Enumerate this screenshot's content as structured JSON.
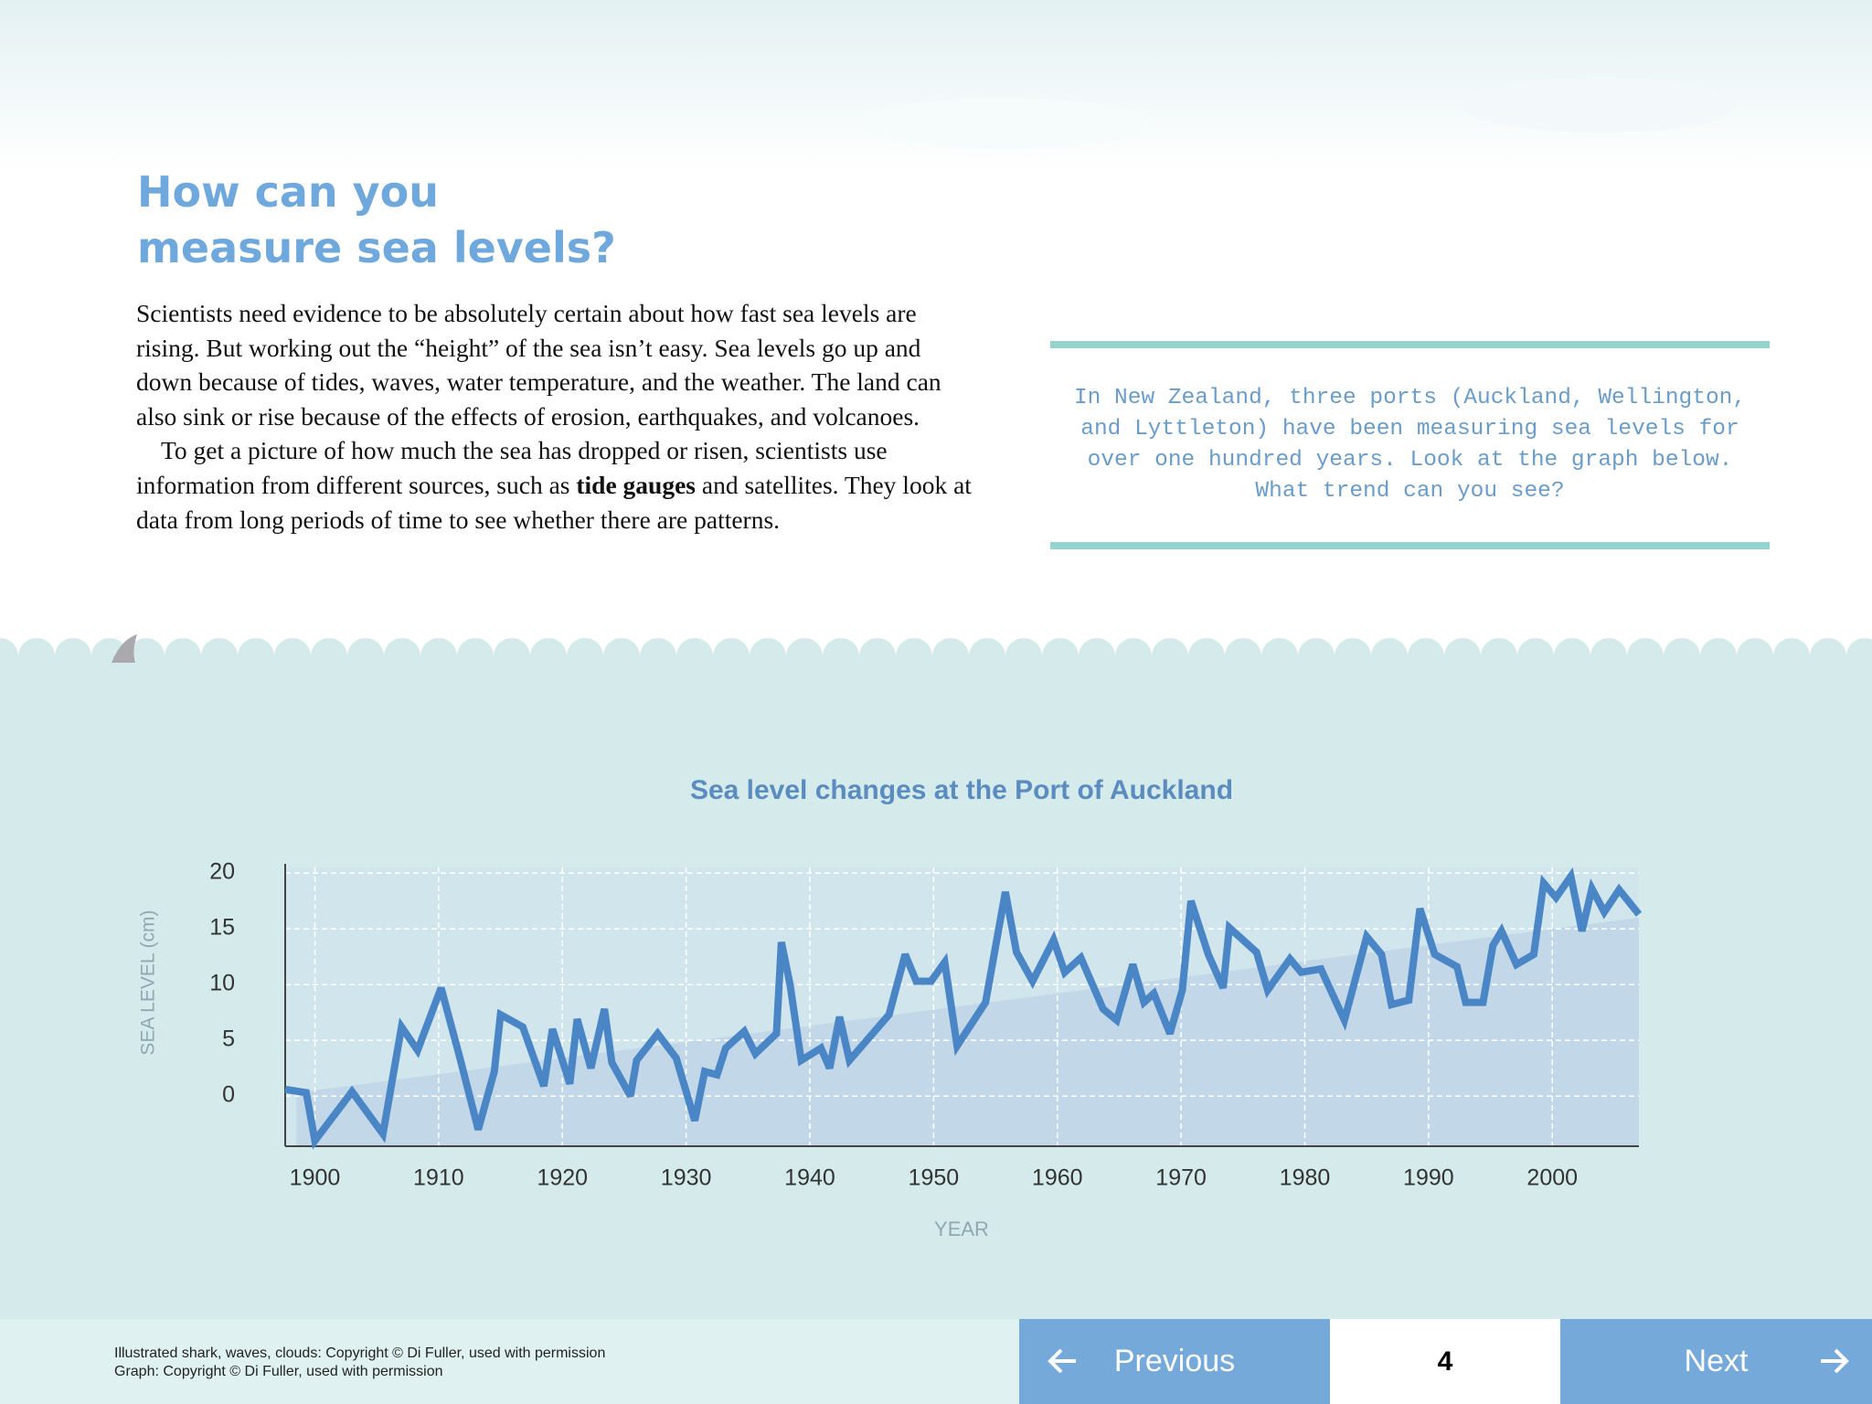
{
  "header": {
    "title_lines": [
      "How can you",
      "measure sea levels?"
    ]
  },
  "body": {
    "paragraphs": [
      [
        "Scientists need evidence to be absolutely certain about how fast sea levels are rising. But working out the “height” of the sea isn’t easy. Sea levels go up and down because of tides, waves, water temperature, and the weather. The land can also sink or rise because of the effects of erosion, earthquakes, and volcanoes."
      ],
      [
        "To get a picture of how much the sea has dropped or risen, scientists use information from different sources, such as ",
        "tide gauges",
        " and satellites. They look at data from long periods of time to see whether there are patterns."
      ]
    ]
  },
  "callout": {
    "lines": [
      "In New Zealand, three ports (Auckland, Wellington,",
      "and Lyttleton) have been measuring sea levels for",
      "over one hundred years. Look at the graph below.",
      "What trend can you see?"
    ]
  },
  "chart_data": {
    "type": "line",
    "title": "Sea level changes at the Port of Auckland",
    "xlabel": "YEAR",
    "ylabel": "SEA LEVEL (cm)",
    "x": [
      1897.6,
      1899.3,
      1900,
      1903,
      1905.5,
      1907,
      1908.3,
      1910.2,
      1911.7,
      1913.2,
      1914.5,
      1915,
      1916.8,
      1918.5,
      1919.2,
      1920.6,
      1921.2,
      1922.3,
      1923.4,
      1924,
      1925.5,
      1926,
      1927.7,
      1929.2,
      1930.7,
      1931.5,
      1932.5,
      1933.2,
      1934.7,
      1935.6,
      1937.3,
      1937.7,
      1938.4,
      1939.3,
      1940.9,
      1941.6,
      1942.4,
      1943.2,
      1946.4,
      1947.7,
      1948.6,
      1949.8,
      1950.9,
      1951.9,
      1954.2,
      1955.8,
      1956.7,
      1958,
      1959.7,
      1960.6,
      1961.9,
      1963.7,
      1964.8,
      1966.1,
      1967,
      1967.8,
      1969.1,
      1970.1,
      1970.8,
      1972.2,
      1973.4,
      1973.9,
      1976.1,
      1977,
      1978.8,
      1979.7,
      1981.3,
      1983.2,
      1985,
      1986.2,
      1987,
      1988.4,
      1989.3,
      1990.5,
      1992.3,
      1993,
      1994.4,
      1995.2,
      1995.9,
      1997.1,
      1998.5,
      1999.3,
      2000.3,
      2001.5,
      2002.4,
      2003.2,
      2004.2,
      2005.4,
      2007
    ],
    "series": [
      {
        "color": "#4a86c5",
        "values": [
          0.6,
          0.3,
          -4,
          0.4,
          -3.4,
          6.2,
          4.1,
          9.7,
          3.5,
          -3,
          2.2,
          7.3,
          6.2,
          0.9,
          6,
          1.1,
          6.9,
          2.5,
          7.8,
          3,
          0,
          3.2,
          5.6,
          3.4,
          -2.2,
          2.2,
          1.9,
          4.3,
          5.8,
          3.8,
          5.6,
          13.8,
          10,
          3.2,
          4.3,
          2.5,
          7.1,
          3.2,
          7.3,
          12.7,
          10.3,
          10.3,
          12,
          4.5,
          8.4,
          18.3,
          12.9,
          10.3,
          14,
          11.1,
          12.4,
          7.8,
          6.8,
          11.8,
          8.4,
          9.2,
          5.6,
          9.5,
          17.5,
          12.7,
          9.7,
          15.1,
          12.9,
          9.5,
          12.3,
          11.1,
          11.4,
          6.8,
          14.3,
          12.7,
          8.2,
          8.6,
          16.8,
          12.7,
          11.6,
          8.4,
          8.4,
          13.5,
          14.8,
          11.8,
          12.7,
          19.1,
          17.8,
          19.7,
          14.8,
          18.6,
          16.5,
          18.5,
          16.3
        ]
      }
    ],
    "trend": {
      "color": "#c2d8e8",
      "x": [
        1898.5,
        2007
      ],
      "values": [
        0.3,
        16
      ]
    },
    "xlim": [
      1897.6,
      2007
    ],
    "ylim": [
      -4.5,
      20.5
    ],
    "xticks": [
      1900,
      1910,
      1920,
      1930,
      1940,
      1950,
      1960,
      1970,
      1980,
      1990,
      2000
    ],
    "yticks": [
      0,
      5,
      10,
      15,
      20
    ],
    "grid": true
  },
  "footer": {
    "credits": [
      "Illustrated shark, waves, clouds: Copyright © Di Fuller, used with permission",
      "Graph: Copyright © Di Fuller, used with permission"
    ],
    "previous": "Previous",
    "page": "4",
    "next": "Next"
  }
}
